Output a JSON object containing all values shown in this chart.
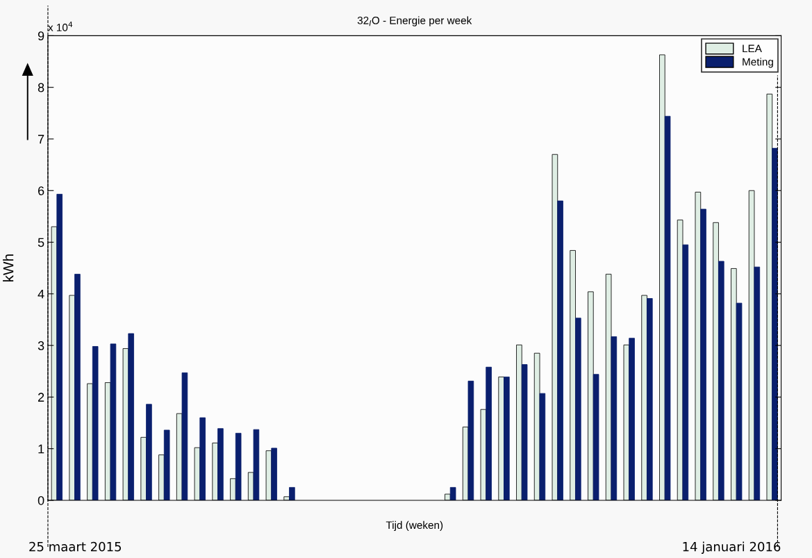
{
  "chart_data": {
    "type": "bar",
    "title": "32$_{I}$O - Energie per week",
    "xlabel": "Tijd (weken)",
    "ylabel": "kWh",
    "annotations": [
      "x 10$^{4}$",
      "25 maart 2015",
      "14 januari 2016"
    ],
    "categories": [
      null,
      null,
      null,
      null,
      null,
      null,
      null,
      null,
      null,
      null,
      null,
      null,
      null,
      null,
      null,
      null,
      null,
      null,
      null,
      null,
      null,
      null,
      null,
      null,
      null,
      null,
      null,
      null,
      null,
      null,
      null,
      null,
      null,
      null,
      null,
      null,
      null,
      null,
      null,
      null,
      null
    ],
    "series": [
      {
        "name": "LEA",
        "color": "#dfeee4",
        "values": [
          5.3,
          3.97,
          2.26,
          2.28,
          2.94,
          1.22,
          0.88,
          1.68,
          1.02,
          1.11,
          0.42,
          0.54,
          0.96,
          0.07,
          0,
          0,
          0,
          0,
          0,
          0,
          0,
          0,
          0.12,
          1.42,
          1.76,
          2.39,
          3.01,
          2.85,
          6.7,
          4.84,
          4.04,
          4.38,
          3.01,
          3.97,
          8.63,
          5.43,
          5.97,
          5.38,
          4.49,
          6.0,
          7.87
        ]
      },
      {
        "name": "Meting",
        "color": "#0a1f6e",
        "values": [
          5.93,
          4.38,
          2.98,
          3.03,
          3.23,
          1.86,
          1.36,
          2.47,
          1.6,
          1.39,
          1.3,
          1.37,
          1.01,
          0.25,
          0,
          0,
          0,
          0,
          0,
          0,
          0,
          0,
          0.25,
          2.31,
          2.58,
          2.39,
          2.63,
          2.07,
          5.8,
          3.53,
          2.44,
          3.17,
          3.14,
          3.91,
          7.44,
          4.95,
          5.64,
          4.63,
          3.82,
          4.52,
          6.82
        ]
      }
    ],
    "ylim": [
      0,
      9
    ],
    "yticks": [
      0,
      1,
      2,
      3,
      4,
      5,
      6,
      7,
      8,
      9
    ],
    "grid": false,
    "legend": "top right"
  }
}
